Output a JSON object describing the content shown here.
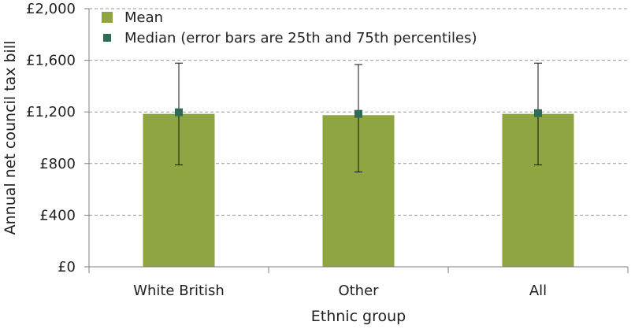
{
  "chart_data": {
    "type": "bar",
    "categories": [
      "White British",
      "Other",
      "All"
    ],
    "series": [
      {
        "name": "Mean",
        "kind": "bar",
        "values": [
          1185,
          1175,
          1185
        ]
      },
      {
        "name": "Median (error bars are 25th and 75th percentiles)",
        "kind": "point",
        "values": [
          1197,
          1185,
          1190
        ],
        "error_low": [
          790,
          735,
          790
        ],
        "error_high": [
          1578,
          1567,
          1578
        ]
      }
    ],
    "ylabel": "Annual net council tax bill",
    "xlabel": "Ethnic group",
    "yticks": [
      "£0",
      "£400",
      "£800",
      "£1,200",
      "£1,600",
      "£2,000"
    ],
    "ylim": [
      0,
      2000
    ],
    "grid": true,
    "legend_position": "top-left",
    "colors": {
      "bar": "#8fa542",
      "median": "#2f6b55",
      "grid": "#9a9a9a",
      "axis": "#7f7f7f",
      "errorbar": "#111111"
    }
  }
}
